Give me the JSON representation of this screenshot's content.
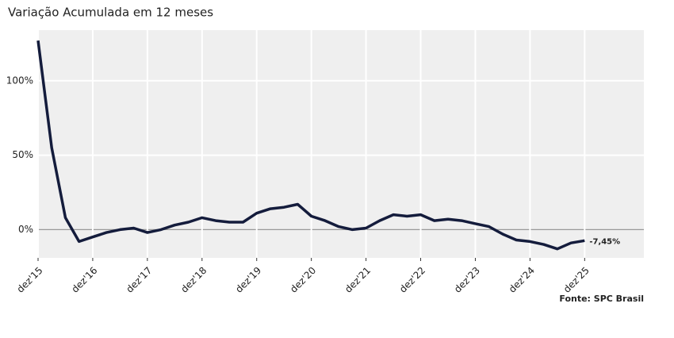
{
  "chart_data": {
    "type": "line",
    "title": "Variação Acumulada em 12 meses",
    "note": "Fonte: SPC Brasil",
    "x": [
      "2015-12",
      "2016-03",
      "2016-06",
      "2016-09",
      "2016-12",
      "2017-03",
      "2017-06",
      "2017-09",
      "2017-12",
      "2018-03",
      "2018-06",
      "2018-09",
      "2018-12",
      "2019-03",
      "2019-06",
      "2019-09",
      "2019-12",
      "2020-03",
      "2020-06",
      "2020-09",
      "2020-12",
      "2021-03",
      "2021-06",
      "2021-09",
      "2021-12",
      "2022-03",
      "2022-06",
      "2022-09",
      "2022-12",
      "2023-03",
      "2023-06",
      "2023-09",
      "2023-12",
      "2024-03",
      "2024-06",
      "2024-09",
      "2024-12",
      "2025-03",
      "2025-06",
      "2025-09",
      "2025-12"
    ],
    "values": [
      127,
      55,
      8,
      -8,
      -5,
      -2,
      0,
      1,
      -2,
      0,
      3,
      5,
      8,
      6,
      5,
      5,
      11,
      14,
      15,
      17,
      9,
      6,
      2,
      0,
      1,
      6,
      10,
      9,
      10,
      6,
      7,
      6,
      4,
      2,
      -3,
      -7,
      -8,
      -10,
      -13,
      -9,
      -7.45
    ],
    "end_label": "-7,45%",
    "color": "#141c3c",
    "xlim": [
      "2015-12",
      "2027-01"
    ],
    "xticks": [
      {
        "value": "2015-12",
        "label": "dez'15"
      },
      {
        "value": "2016-12",
        "label": "dez'16"
      },
      {
        "value": "2017-12",
        "label": "dez'17"
      },
      {
        "value": "2018-12",
        "label": "dez'18"
      },
      {
        "value": "2019-12",
        "label": "dez'19"
      },
      {
        "value": "2020-12",
        "label": "dez'20"
      },
      {
        "value": "2021-12",
        "label": "dez'21"
      },
      {
        "value": "2022-12",
        "label": "dez'22"
      },
      {
        "value": "2023-12",
        "label": "dez'23"
      },
      {
        "value": "2024-12",
        "label": "dez'24"
      },
      {
        "value": "2025-12",
        "label": "dez'25"
      }
    ],
    "ylim": [
      -19,
      134
    ],
    "yticks": [
      {
        "value": 0,
        "label": "0%"
      },
      {
        "value": 50,
        "label": "50%"
      },
      {
        "value": 100,
        "label": "100%"
      }
    ],
    "grid": true
  }
}
